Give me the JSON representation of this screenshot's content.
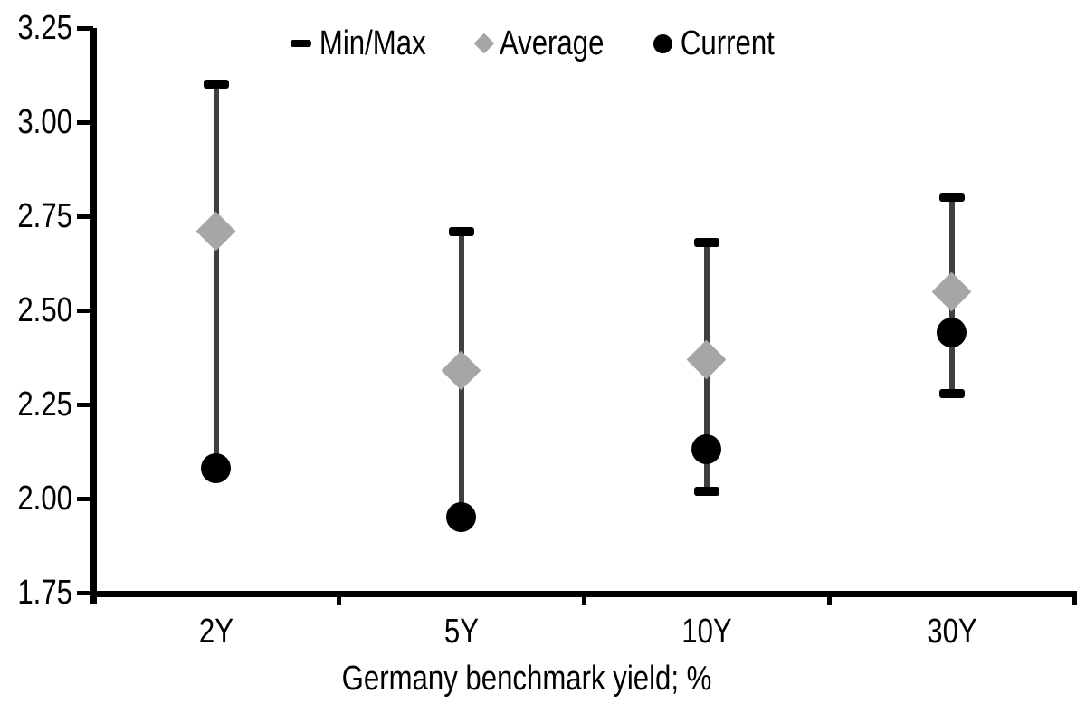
{
  "chart_data": {
    "type": "scatter",
    "subtype": "min-max-range-with-average-and-current",
    "categories": [
      "2Y",
      "5Y",
      "10Y",
      "30Y"
    ],
    "series": [
      {
        "name": "Min/Max",
        "marker": "dash",
        "max": [
          3.1,
          2.71,
          2.68,
          2.8
        ],
        "min": [
          2.08,
          1.95,
          2.02,
          2.28
        ]
      },
      {
        "name": "Average",
        "marker": "diamond",
        "values": [
          2.71,
          2.34,
          2.37,
          2.55
        ]
      },
      {
        "name": "Current",
        "marker": "circle",
        "values": [
          2.08,
          1.95,
          2.13,
          2.44
        ]
      }
    ],
    "xlabel": "Germany benchmark yield; %",
    "ylabel": "",
    "ylim": [
      1.75,
      3.25
    ],
    "ytick_labels": [
      "1.75",
      "2.00",
      "2.25",
      "2.50",
      "2.75",
      "3.00",
      "3.25"
    ],
    "ytick_values": [
      1.75,
      2.0,
      2.25,
      2.5,
      2.75,
      3.0,
      3.25
    ],
    "grid": false,
    "legend_position": "top-center",
    "colors": {
      "background": "#ffffff",
      "axis": "#000000",
      "text": "#000000",
      "min_max_marker": "#000000",
      "average_marker": "#a6a6a6",
      "current_marker": "#000000",
      "whisker_line": "#3f3f3f"
    }
  }
}
